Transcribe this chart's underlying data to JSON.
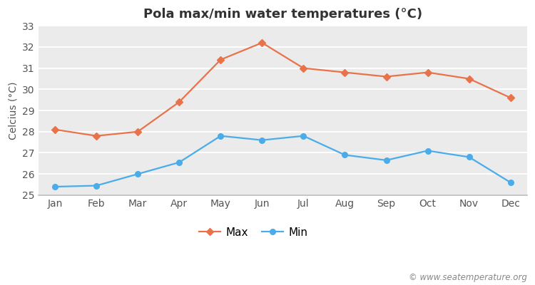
{
  "title": "Pola max/min water temperatures (°C)",
  "ylabel": "Celcius (°C)",
  "months": [
    "Jan",
    "Feb",
    "Mar",
    "Apr",
    "May",
    "Jun",
    "Jul",
    "Aug",
    "Sep",
    "Oct",
    "Nov",
    "Dec"
  ],
  "max_values": [
    28.1,
    27.8,
    28.0,
    29.4,
    31.4,
    32.2,
    31.0,
    30.8,
    30.6,
    30.8,
    30.5,
    29.6
  ],
  "min_values": [
    25.4,
    25.45,
    26.0,
    26.55,
    27.8,
    27.6,
    27.8,
    26.9,
    26.65,
    27.1,
    26.8,
    25.6
  ],
  "max_color": "#e8734a",
  "min_color": "#4aace8",
  "fig_bg_color": "#ffffff",
  "plot_bg_color": "#ebebeb",
  "ylim": [
    25,
    33
  ],
  "yticks": [
    25,
    26,
    27,
    28,
    29,
    30,
    31,
    32,
    33
  ],
  "legend_labels": [
    "Max",
    "Min"
  ],
  "watermark": "© www.seatemperature.org",
  "title_fontsize": 13,
  "label_fontsize": 10,
  "tick_fontsize": 10,
  "watermark_fontsize": 8.5
}
